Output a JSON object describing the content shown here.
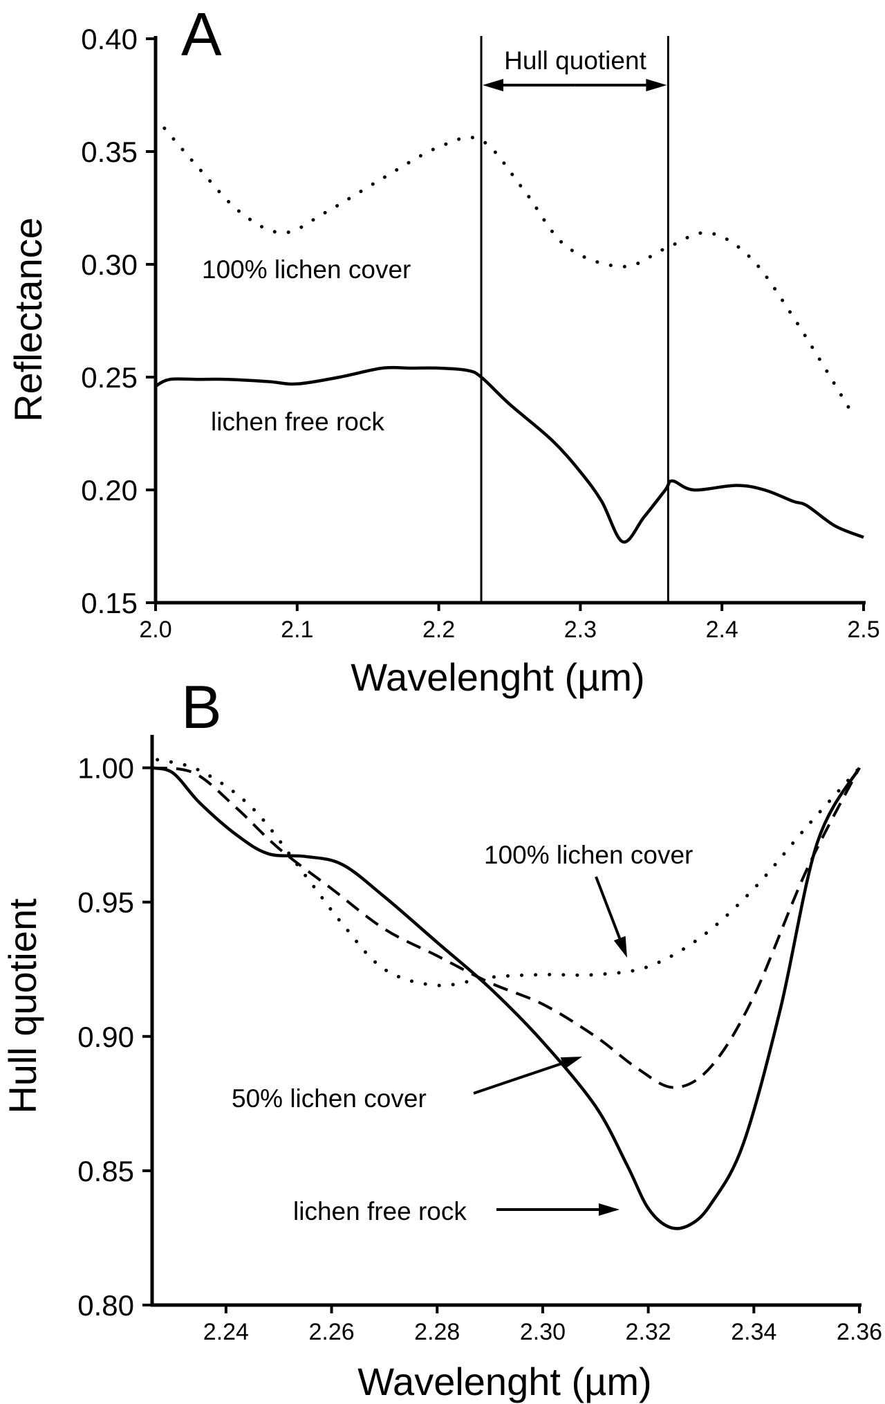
{
  "chart_data": [
    {
      "panel": "A",
      "type": "line",
      "xlabel": "Wavelenght (µm)",
      "ylabel": "Reflectance",
      "xlim": [
        2.0,
        2.5
      ],
      "ylim": [
        0.15,
        0.4
      ],
      "x_ticks": [
        2.0,
        2.1,
        2.2,
        2.3,
        2.4,
        2.5
      ],
      "x_tick_labels": [
        "2.0",
        "2.1",
        "2.2",
        "2.3",
        "2.4",
        "2.5"
      ],
      "y_ticks": [
        0.15,
        0.2,
        0.25,
        0.3,
        0.35,
        0.4
      ],
      "y_tick_labels": [
        "0.15",
        "0.20",
        "0.25",
        "0.30",
        "0.35",
        "0.40"
      ],
      "grid": false,
      "vertical_lines": [
        2.23,
        2.362
      ],
      "hull_label": "Hull quotient",
      "series": [
        {
          "name": "100% lichen cover",
          "style": "dotted",
          "x": [
            2.0,
            2.03,
            2.06,
            2.09,
            2.12,
            2.16,
            2.2,
            2.23,
            2.26,
            2.29,
            2.33,
            2.36,
            2.39,
            2.42,
            2.45,
            2.49
          ],
          "y": [
            0.365,
            0.343,
            0.323,
            0.314,
            0.323,
            0.338,
            0.352,
            0.355,
            0.333,
            0.308,
            0.299,
            0.307,
            0.314,
            0.303,
            0.277,
            0.236
          ]
        },
        {
          "name": "lichen free rock",
          "style": "solid",
          "x": [
            2.0,
            2.01,
            2.03,
            2.05,
            2.08,
            2.1,
            2.13,
            2.16,
            2.18,
            2.2,
            2.22,
            2.23,
            2.25,
            2.28,
            2.3,
            2.315,
            2.33,
            2.345,
            2.36,
            2.365,
            2.38,
            2.41,
            2.43,
            2.45,
            2.46,
            2.48,
            2.5
          ],
          "y": [
            0.246,
            0.249,
            0.249,
            0.249,
            0.248,
            0.247,
            0.25,
            0.254,
            0.254,
            0.254,
            0.253,
            0.25,
            0.238,
            0.222,
            0.208,
            0.195,
            0.177,
            0.188,
            0.2,
            0.204,
            0.2,
            0.202,
            0.2,
            0.195,
            0.193,
            0.184,
            0.179
          ]
        }
      ],
      "annotations": [
        "100% lichen cover",
        "lichen free rock"
      ]
    },
    {
      "panel": "B",
      "type": "line",
      "xlabel": "Wavelenght (µm)",
      "ylabel": "Hull quotient",
      "xlim": [
        2.226,
        2.36
      ],
      "ylim": [
        0.8,
        1.012
      ],
      "x_ticks": [
        2.24,
        2.26,
        2.28,
        2.3,
        2.32,
        2.34,
        2.36
      ],
      "x_tick_labels": [
        "2.24",
        "2.26",
        "2.28",
        "2.30",
        "2.32",
        "2.34",
        "2.36"
      ],
      "y_ticks": [
        0.8,
        0.85,
        0.9,
        0.95,
        1.0
      ],
      "y_tick_labels": [
        "0.80",
        "0.85",
        "0.90",
        "0.95",
        "1.00"
      ],
      "grid": false,
      "series": [
        {
          "name": "100% lichen cover",
          "style": "dotted",
          "x": [
            2.227,
            2.235,
            2.245,
            2.255,
            2.262,
            2.27,
            2.28,
            2.29,
            2.3,
            2.31,
            2.32,
            2.33,
            2.34,
            2.35,
            2.36
          ],
          "y": [
            1.003,
            0.999,
            0.985,
            0.96,
            0.942,
            0.925,
            0.919,
            0.922,
            0.923,
            0.923,
            0.926,
            0.937,
            0.955,
            0.978,
            1.0
          ]
        },
        {
          "name": "50% lichen cover",
          "style": "dashed",
          "x": [
            2.226,
            2.234,
            2.242,
            2.25,
            2.26,
            2.27,
            2.28,
            2.29,
            2.3,
            2.31,
            2.318,
            2.325,
            2.332,
            2.34,
            2.35,
            2.36
          ],
          "y": [
            1.0,
            0.998,
            0.985,
            0.97,
            0.955,
            0.94,
            0.93,
            0.92,
            0.912,
            0.9,
            0.888,
            0.881,
            0.889,
            0.915,
            0.962,
            1.0
          ]
        },
        {
          "name": "lichen free rock",
          "style": "solid",
          "x": [
            2.226,
            2.23,
            2.235,
            2.242,
            2.248,
            2.255,
            2.262,
            2.27,
            2.28,
            2.29,
            2.3,
            2.31,
            2.316,
            2.32,
            2.324,
            2.328,
            2.332,
            2.338,
            2.345,
            2.352,
            2.36
          ],
          "y": [
            1.0,
            0.998,
            0.987,
            0.975,
            0.968,
            0.967,
            0.964,
            0.952,
            0.935,
            0.918,
            0.898,
            0.874,
            0.852,
            0.836,
            0.829,
            0.83,
            0.838,
            0.86,
            0.91,
            0.972,
            1.0
          ]
        }
      ],
      "annotations": [
        "100% lichen cover",
        "50% lichen cover",
        "lichen free rock"
      ]
    }
  ],
  "panels": {
    "a": {
      "letter": "A",
      "hull_label": "Hull quotient",
      "label_lichen_cover": "100% lichen cover",
      "label_free_rock": "lichen free rock"
    },
    "b": {
      "letter": "B",
      "label_lichen_cover_100": "100% lichen cover",
      "label_lichen_cover_50": "50% lichen cover",
      "label_free_rock": "lichen free rock"
    }
  }
}
